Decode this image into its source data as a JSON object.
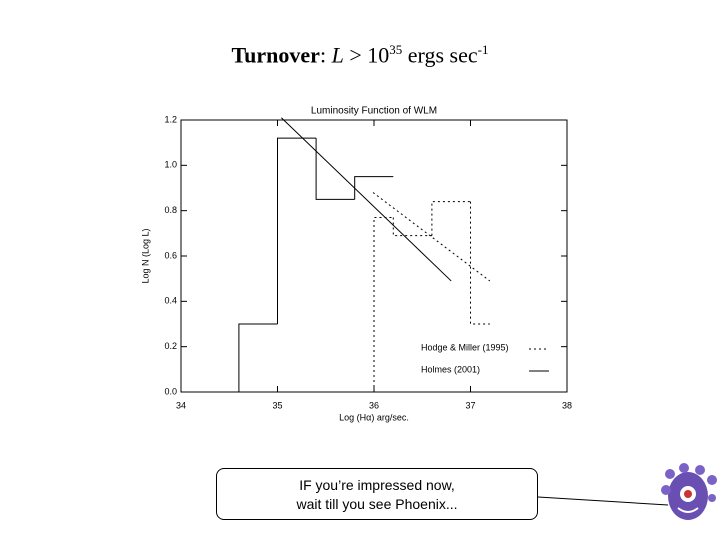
{
  "slide": {
    "title": {
      "bold": "Turnover",
      "colon": ":",
      "var": "L",
      "mid": " > 10",
      "exp1": "35",
      "unit": " ergs sec",
      "exp2": "-1"
    },
    "callout": [
      "IF you’re impressed now,",
      "wait till you see Phoenix..."
    ]
  },
  "chart_data": {
    "type": "histogram",
    "title": "Luminosity Function of WLM",
    "x_label": "Log  (Hα) arg/sec.",
    "y_label": "Log N (Log L)",
    "xlim": [
      34,
      38
    ],
    "ylim": [
      0,
      1.2
    ],
    "xticks": [
      34,
      35,
      36,
      37,
      38
    ],
    "yticks": [
      {
        "value": 0,
        "label": "0.0"
      },
      0.2,
      0.4,
      0.6,
      0.8,
      {
        "value": 1,
        "label": "1.0"
      },
      1.2
    ],
    "legend": "lower right",
    "series": [
      {
        "name": "Hodge & Miller (1995)",
        "dash": "dotted",
        "color": "#000000",
        "bins": [
          36.0,
          36.2,
          36.6,
          37.0,
          37.2
        ],
        "values": [
          0.77,
          0.69,
          0.84,
          0.3
        ],
        "fit": {
          "x": [
            35.99,
            37.2
          ],
          "values": [
            0.88,
            0.49
          ]
        }
      },
      {
        "name": "Holmes (2001)",
        "dash": "solid",
        "color": "#000000",
        "bins": [
          34.6,
          35.0,
          35.4,
          35.8,
          36.2
        ],
        "values": [
          0.3,
          1.12,
          0.85,
          0.95
        ],
        "fit": {
          "x": [
            35.04,
            36.8
          ],
          "values": [
            1.21,
            0.49
          ]
        }
      }
    ]
  }
}
